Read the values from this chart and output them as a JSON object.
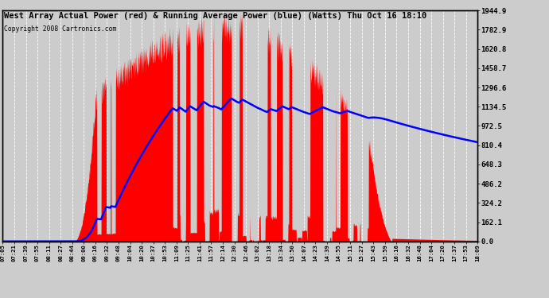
{
  "title": "West Array Actual Power (red) & Running Average Power (blue) (Watts) Thu Oct 16 18:10",
  "copyright": "Copyright 2008 Cartronics.com",
  "background_color": "#cccccc",
  "red_color": "#ff0000",
  "blue_color": "#0000ff",
  "grid_color": "#ffffff",
  "border_color": "#000000",
  "y_ticks": [
    0.0,
    162.1,
    324.2,
    486.2,
    648.3,
    810.4,
    972.5,
    1134.5,
    1296.6,
    1458.7,
    1620.8,
    1782.9,
    1944.9
  ],
  "ylim": [
    0,
    1944.9
  ],
  "x_labels": [
    "07:05",
    "07:21",
    "07:39",
    "07:55",
    "08:11",
    "08:27",
    "08:44",
    "09:00",
    "09:16",
    "09:32",
    "09:48",
    "10:04",
    "10:20",
    "10:37",
    "10:53",
    "11:09",
    "11:25",
    "11:41",
    "11:57",
    "12:14",
    "12:30",
    "12:46",
    "13:02",
    "13:18",
    "13:34",
    "13:50",
    "14:07",
    "14:23",
    "14:39",
    "14:55",
    "15:11",
    "15:27",
    "15:43",
    "15:59",
    "16:16",
    "16:32",
    "16:48",
    "17:04",
    "17:20",
    "17:37",
    "17:53",
    "18:09"
  ]
}
